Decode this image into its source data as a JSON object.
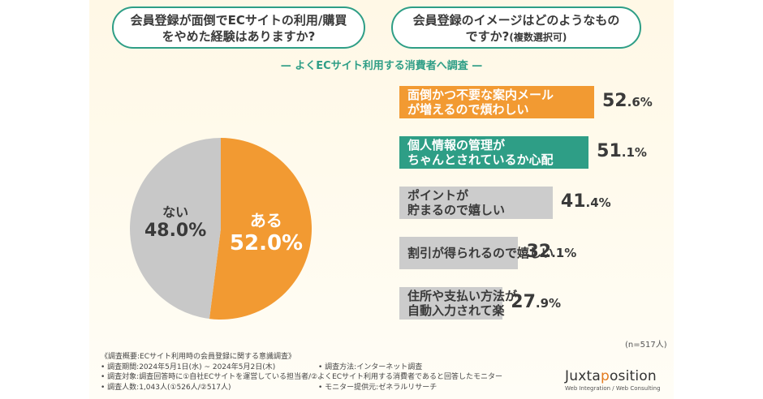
{
  "questions": {
    "q1": "会員登録が面倒でECサイトの利用/購買をやめた経験はありますか?",
    "q2": "会員登録のイメージはどのようなものですか?",
    "q2_note": "(複数選択可)"
  },
  "subtitle": "— よくECサイト利用する消費者へ調査 —",
  "chart_data": [
    {
      "type": "pie",
      "slices": [
        {
          "label": "ある",
          "value": 52.0,
          "display": "52.0%",
          "color": "#f29a32"
        },
        {
          "label": "ない",
          "value": 48.0,
          "display": "48.0%",
          "color": "#c8c8c8"
        }
      ]
    },
    {
      "type": "bar",
      "orientation": "horizontal",
      "xlim": [
        0,
        52.6
      ],
      "categories": [
        "面倒かつ不要な案内メールが増えるので煩わしい",
        "個人情報の管理がちゃんとされているか心配",
        "ポイントが貯まるので嬉しい",
        "割引が得られるので嬉しい",
        "住所や支払い方法が自動入力されて楽"
      ],
      "values": [
        52.6,
        51.1,
        41.4,
        32.1,
        27.9
      ],
      "display": [
        "52.6%",
        "51.1%",
        "41.4%",
        "32.1%",
        "27.9%"
      ],
      "colors": [
        "#f29a32",
        "#2e9e86",
        "#cccccc",
        "#cccccc",
        "#cccccc"
      ],
      "label_lines": [
        [
          "面倒かつ不要な案内メール",
          "が増えるので煩わしい"
        ],
        [
          "個人情報の管理が",
          "ちゃんとされているか心配"
        ],
        [
          "ポイントが",
          "貯まるので嬉しい"
        ],
        [
          "割引が得られるので嬉しい"
        ],
        [
          "住所や支払い方法が",
          "自動入力されて楽"
        ]
      ],
      "note": "(n=517人)"
    }
  ],
  "survey": {
    "title": "《調査概要:ECサイト利用時の会員登録に関する意識調査》",
    "period": "• 調査期間:2024年5月1日(水) ~ 2024年5月2日(木)",
    "method": "• 調査方法:インターネット調査",
    "target": "• 調査対象:調査回答時に①自社ECサイトを運営している担当者/②よくECサイト利用する消費者であると回答したモニター",
    "count": "• 調査人数:1,043人(①526人/②517人)",
    "provider": "• モニター提供元:ゼネラルリサーチ"
  },
  "logo": {
    "pre": "Juxta",
    "accent": "p",
    "post": "osition",
    "tagline": "Web Integration / Web Consulting"
  }
}
